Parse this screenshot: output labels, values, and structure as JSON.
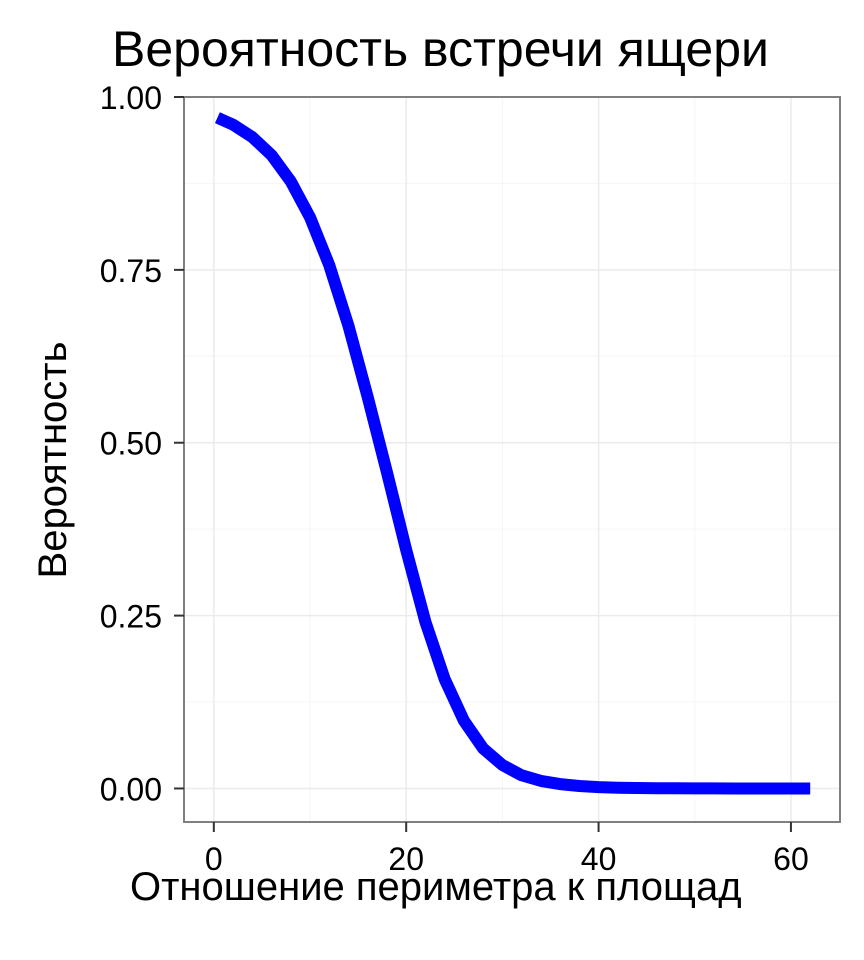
{
  "chart_data": {
    "type": "line",
    "title": "Вероятность встречи ящери",
    "xlabel": "Отношение периметра к площад",
    "ylabel": "Вероятность",
    "xlim": [
      -3.1,
      65.1
    ],
    "ylim": [
      -0.0485,
      1.0
    ],
    "x_ticks": [
      {
        "value": 0,
        "label": "0"
      },
      {
        "value": 20,
        "label": "20"
      },
      {
        "value": 40,
        "label": "40"
      },
      {
        "value": 60,
        "label": "60"
      }
    ],
    "y_ticks": [
      {
        "value": 0,
        "label": "0.00"
      },
      {
        "value": 0.25,
        "label": "0.25"
      },
      {
        "value": 0.5,
        "label": "0.50"
      },
      {
        "value": 0.75,
        "label": "0.75"
      },
      {
        "value": 1.0,
        "label": "1.00"
      }
    ],
    "grid": true,
    "line_color": "#0000ff",
    "series": [
      {
        "x": [
          0.37,
          2,
          4,
          6,
          8,
          10,
          12,
          14,
          16,
          18,
          20,
          22,
          24,
          26,
          28,
          30,
          32,
          34,
          36,
          38,
          40,
          42,
          44,
          46,
          48,
          50,
          52,
          54,
          56,
          58,
          60,
          62
        ],
        "values": [
          0.97,
          0.96,
          0.942,
          0.916,
          0.878,
          0.826,
          0.757,
          0.669,
          0.566,
          0.457,
          0.345,
          0.241,
          0.158,
          0.098,
          0.058,
          0.034,
          0.019,
          0.011,
          0.0063,
          0.0036,
          0.002,
          0.0011,
          0.0006,
          0.0004,
          0.0002,
          0.0001,
          0.0001,
          0.0,
          0.0,
          0.0,
          0.0,
          0.0
        ]
      }
    ]
  }
}
